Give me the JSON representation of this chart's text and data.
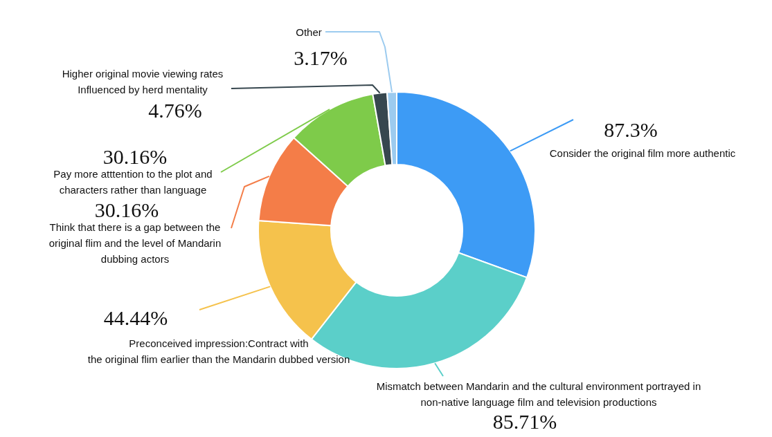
{
  "chart_data": {
    "type": "donut",
    "categories": [
      "Consider the original film more authentic",
      "Mismatch between Mandarin and the cultural environment portrayed in\nnon-native language film and television productions",
      "Preconceived impression:Contract with\nthe original flim earlier than the Mandarin dubbed version",
      "Think that there is a gap between the\noriginal flim and the level of Mandarin\ndubbing actors",
      "Pay more atttention to the plot and\ncharacters rather than language",
      "Higher original movie viewing rates\nInfluenced by herd mentality",
      "Other"
    ],
    "values": [
      87.3,
      85.71,
      44.44,
      30.16,
      30.16,
      4.76,
      3.17
    ],
    "value_labels": [
      "87.3%",
      "85.71%",
      "44.44%",
      "30.16%",
      "30.16%",
      "4.76%",
      "3.17%"
    ],
    "colors": [
      "#3d9bf5",
      "#5bcfc9",
      "#f5c24c",
      "#f47d48",
      "#7ecb4a",
      "#37474f",
      "#9ccbef"
    ]
  }
}
